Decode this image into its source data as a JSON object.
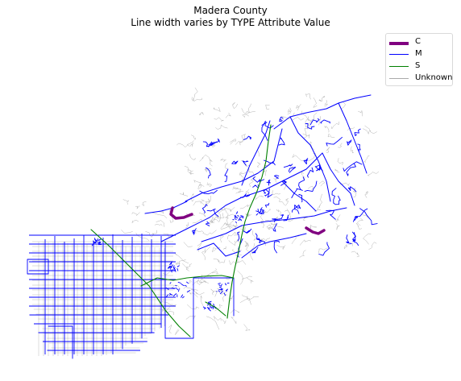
{
  "title": {
    "line1": "Madera County",
    "line2": "Line width varies by TYPE Attribute Value"
  },
  "legend": {
    "items": [
      {
        "label": "C",
        "color": "#800080",
        "style": "thick"
      },
      {
        "label": "M",
        "color": "#0000ff",
        "style": "medium"
      },
      {
        "label": "S",
        "color": "#008000",
        "style": "medium"
      },
      {
        "label": "Unknown",
        "color": "#aaaaaa",
        "style": "thin"
      }
    ]
  },
  "colors": {
    "C": "#800080",
    "M": "#0000ff",
    "S": "#008000",
    "Unknown": "#aaaaaa",
    "background": "#ffffff"
  }
}
